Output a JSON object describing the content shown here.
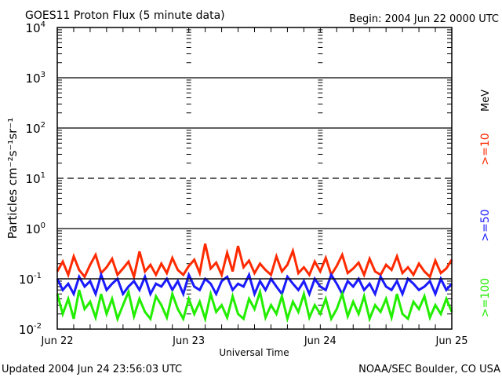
{
  "chart_data": {
    "type": "line",
    "title": "GOES11 Proton Flux (5 minute data)",
    "begin_label": "Begin: 2004 Jun 22 0000 UTC",
    "xlabel": "Universal Time",
    "ylabel": "Particles cm⁻²s⁻¹sr⁻¹",
    "y_scale": "log",
    "ylim": [
      0.01,
      10000
    ],
    "y_ticks": [
      {
        "base": "10",
        "exp": "4"
      },
      {
        "base": "10",
        "exp": "3"
      },
      {
        "base": "10",
        "exp": "2"
      },
      {
        "base": "10",
        "exp": "1"
      },
      {
        "base": "10",
        "exp": "0"
      },
      {
        "base": "10",
        "exp": "-1"
      },
      {
        "base": "10",
        "exp": "-2"
      }
    ],
    "x_ticks": [
      "Jun 22",
      "Jun 23",
      "Jun 24",
      "Jun 25"
    ],
    "x_range_hours": [
      0,
      72
    ],
    "grid": "solid lines at each decade, dashed at 10^1, dotted day separators",
    "unit_label": "MeV",
    "series": [
      {
        "name": ">=10",
        "color": "#ff2a00",
        "values": [
          0.14,
          0.22,
          0.12,
          0.28,
          0.15,
          0.11,
          0.19,
          0.3,
          0.13,
          0.17,
          0.25,
          0.12,
          0.16,
          0.22,
          0.11,
          0.35,
          0.14,
          0.19,
          0.12,
          0.2,
          0.13,
          0.26,
          0.15,
          0.12,
          0.18,
          0.24,
          0.13,
          0.5,
          0.16,
          0.21,
          0.12,
          0.33,
          0.14,
          0.45,
          0.17,
          0.23,
          0.13,
          0.2,
          0.15,
          0.12,
          0.28,
          0.14,
          0.19,
          0.36,
          0.13,
          0.17,
          0.12,
          0.22,
          0.14,
          0.26,
          0.12,
          0.18,
          0.3,
          0.13,
          0.16,
          0.21,
          0.12,
          0.25,
          0.14,
          0.12,
          0.19,
          0.15,
          0.28,
          0.13,
          0.17,
          0.12,
          0.2,
          0.14,
          0.11,
          0.23,
          0.13,
          0.16,
          0.24
        ]
      },
      {
        "name": ">=50",
        "color": "#1a1aff",
        "values": [
          0.1,
          0.06,
          0.08,
          0.05,
          0.11,
          0.07,
          0.09,
          0.05,
          0.12,
          0.06,
          0.08,
          0.1,
          0.05,
          0.07,
          0.09,
          0.06,
          0.11,
          0.05,
          0.08,
          0.07,
          0.1,
          0.06,
          0.09,
          0.05,
          0.12,
          0.07,
          0.06,
          0.1,
          0.08,
          0.05,
          0.09,
          0.11,
          0.06,
          0.08,
          0.07,
          0.12,
          0.05,
          0.09,
          0.06,
          0.1,
          0.07,
          0.05,
          0.11,
          0.08,
          0.06,
          0.09,
          0.05,
          0.1,
          0.07,
          0.06,
          0.12,
          0.08,
          0.05,
          0.09,
          0.07,
          0.1,
          0.06,
          0.08,
          0.05,
          0.11,
          0.07,
          0.06,
          0.09,
          0.05,
          0.1,
          0.08,
          0.06,
          0.07,
          0.09,
          0.05,
          0.1,
          0.06,
          0.08
        ]
      },
      {
        "name": ">=100",
        "color": "#22ee00",
        "values": [
          0.05,
          0.02,
          0.04,
          0.016,
          0.06,
          0.025,
          0.035,
          0.017,
          0.05,
          0.02,
          0.04,
          0.016,
          0.03,
          0.055,
          0.018,
          0.04,
          0.022,
          0.016,
          0.045,
          0.03,
          0.017,
          0.05,
          0.025,
          0.016,
          0.04,
          0.02,
          0.035,
          0.016,
          0.05,
          0.022,
          0.03,
          0.017,
          0.045,
          0.02,
          0.016,
          0.04,
          0.025,
          0.055,
          0.017,
          0.03,
          0.02,
          0.045,
          0.016,
          0.035,
          0.022,
          0.05,
          0.017,
          0.03,
          0.02,
          0.04,
          0.016,
          0.025,
          0.05,
          0.018,
          0.035,
          0.02,
          0.045,
          0.016,
          0.03,
          0.022,
          0.04,
          0.017,
          0.05,
          0.02,
          0.016,
          0.035,
          0.025,
          0.045,
          0.017,
          0.03,
          0.02,
          0.04,
          0.022
        ]
      }
    ]
  },
  "footer": {
    "updated": "Updated 2004 Jun 24 23:56:03 UTC",
    "source": "NOAA/SEC Boulder, CO USA"
  }
}
